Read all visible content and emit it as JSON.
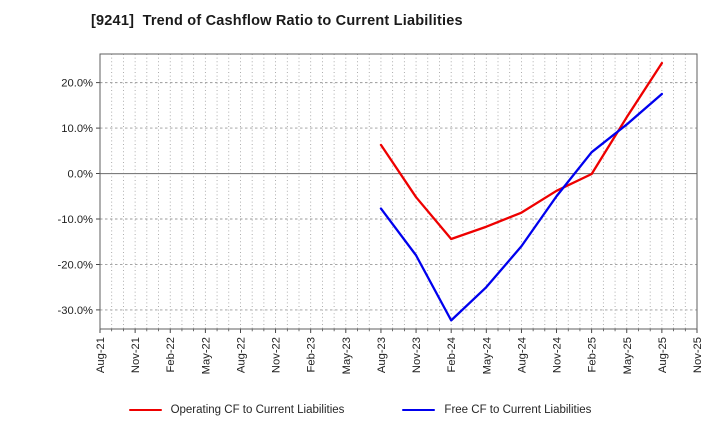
{
  "title": "[9241]  Trend of Cashflow Ratio to Current Liabilities",
  "chart_data": {
    "type": "line",
    "title": "[9241]  Trend of Cashflow Ratio to Current Liabilities",
    "categories": [
      "Aug-21",
      "Nov-21",
      "Feb-22",
      "May-22",
      "Aug-22",
      "Nov-22",
      "Feb-23",
      "May-23",
      "Aug-23",
      "Nov-23",
      "Feb-24",
      "May-24",
      "Aug-24",
      "Nov-24",
      "Feb-25",
      "May-25",
      "Aug-25",
      "Nov-25"
    ],
    "series": [
      {
        "name": "Operating CF to Current Liabilities",
        "color": "#ee0000",
        "values": [
          null,
          null,
          null,
          null,
          null,
          null,
          null,
          null,
          6.3,
          -5.2,
          -14.4,
          -11.7,
          -8.6,
          -3.8,
          -0.1,
          12.4,
          24.3,
          null
        ]
      },
      {
        "name": "Free CF to Current Liabilities",
        "color": "#0000ee",
        "values": [
          null,
          null,
          null,
          null,
          null,
          null,
          null,
          null,
          -7.7,
          -18.0,
          -32.3,
          -25.0,
          -16.0,
          -5.0,
          4.7,
          10.8,
          17.5,
          null
        ]
      }
    ],
    "xlabel": "",
    "ylabel": "",
    "yticks": [
      20,
      10,
      0,
      -10,
      -20,
      -30
    ],
    "ytick_labels": [
      "20.0%",
      "10.0%",
      "0.0%",
      "-10.0%",
      "-20.0%",
      "-30.0%"
    ],
    "ylim": [
      -34.2,
      26.3
    ],
    "grid": true,
    "x_minor_divisions": 3,
    "legend_position": "bottom"
  },
  "colors": {
    "grid_minor": "#9a9a9a",
    "grid_major": "#9a9a9a",
    "zero_line": "#7d7d7d",
    "border": "#5f5f5f",
    "tick": "#333333",
    "tick_label": "#1f1f1f"
  }
}
